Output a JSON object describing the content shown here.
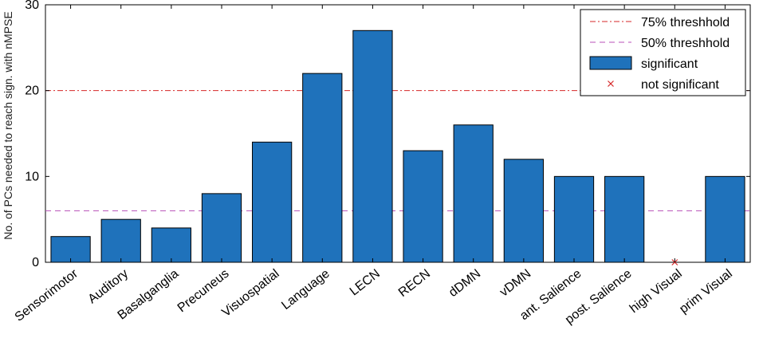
{
  "chart_data": {
    "type": "bar",
    "ylabel": "No. of PCs needed to reach sign. with nMPSE",
    "xlabel": "",
    "ylim": [
      0,
      30
    ],
    "yticks": [
      0,
      10,
      20,
      30
    ],
    "grid": false,
    "legend_position": "top-right",
    "categories": [
      "Sensorimotor",
      "Auditory",
      "Basalganglia",
      "Precuneus",
      "Visuospatial",
      "Language",
      "LECN",
      "RECN",
      "dDMN",
      "vDMN",
      "ant. Salience",
      "post. Salience",
      "high Visual",
      "prim Visual"
    ],
    "series": [
      {
        "name": "significant",
        "color": "#1f72bb",
        "values": [
          3,
          5,
          4,
          8,
          14,
          22,
          27,
          13,
          16,
          12,
          10,
          10,
          null,
          10
        ]
      },
      {
        "name": "not significant",
        "color": "#d62728",
        "marker": "x",
        "values": [
          null,
          null,
          null,
          null,
          null,
          null,
          null,
          null,
          null,
          null,
          null,
          null,
          0,
          null
        ]
      }
    ],
    "reference_lines": [
      {
        "name": "75% threshhold",
        "value": 20,
        "color": "#d62728",
        "style": "dash-dot"
      },
      {
        "name": "50% threshhold",
        "value": 6,
        "color": "#b84fb8",
        "style": "dashed"
      }
    ],
    "legend": [
      {
        "label": "75% threshhold",
        "kind": "dash-dot-line",
        "color": "#d62728"
      },
      {
        "label": "50% threshhold",
        "kind": "dashed-line",
        "color": "#b84fb8"
      },
      {
        "label": "significant",
        "kind": "bar",
        "color": "#1f72bb"
      },
      {
        "label": "not significant",
        "kind": "x-marker",
        "color": "#d62728"
      }
    ]
  }
}
